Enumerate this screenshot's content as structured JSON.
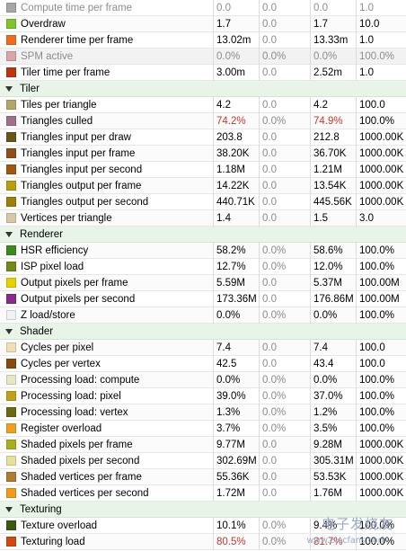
{
  "rows": [
    {
      "type": "data",
      "dim": true,
      "name": "Compute time per frame",
      "color": "#a6a6a6",
      "v": [
        "0.0",
        "0.0",
        "0.0",
        "1.0"
      ]
    },
    {
      "type": "data",
      "name": "Overdraw",
      "color": "#7fc32d",
      "v": [
        "1.7",
        "0.0",
        "1.7",
        "10.0"
      ]
    },
    {
      "type": "data",
      "name": "Renderer time per frame",
      "color": "#f36a1c",
      "v": [
        "13.02m",
        "0.0",
        "13.33m",
        "1.0"
      ]
    },
    {
      "type": "data",
      "dim": true,
      "name": "SPM active",
      "color": "#d7a7a7",
      "v": [
        "0.0%",
        "0.0%",
        "0.0%",
        "100.0%"
      ]
    },
    {
      "type": "data",
      "name": "Tiler time per frame",
      "color": "#c1330f",
      "v": [
        "3.00m",
        "0.0",
        "2.52m",
        "1.0"
      ]
    },
    {
      "type": "section",
      "name": "Tiler"
    },
    {
      "type": "data",
      "name": "Tiles per triangle",
      "color": "#b2a66a",
      "v": [
        "4.2",
        "0.0",
        "4.2",
        "100.0"
      ]
    },
    {
      "type": "data",
      "name": "Triangles culled",
      "color": "#a16f8a",
      "v": [
        "74.2%",
        "0.0%",
        "74.9%",
        "100.0%"
      ],
      "warn": [
        0,
        2
      ]
    },
    {
      "type": "data",
      "name": "Triangles input per draw",
      "color": "#6a5516",
      "v": [
        "203.8",
        "0.0",
        "212.8",
        "1000.00K"
      ]
    },
    {
      "type": "data",
      "name": "Triangles input per frame",
      "color": "#8f4f1a",
      "v": [
        "38.20K",
        "0.0",
        "36.70K",
        "1000.00K"
      ]
    },
    {
      "type": "data",
      "name": "Triangles input per second",
      "color": "#a3560f",
      "v": [
        "1.18M",
        "0.0",
        "1.21M",
        "1000.00K"
      ]
    },
    {
      "type": "data",
      "name": "Triangles output per frame",
      "color": "#b99d10",
      "v": [
        "14.22K",
        "0.0",
        "13.54K",
        "1000.00K"
      ]
    },
    {
      "type": "data",
      "name": "Triangles output per second",
      "color": "#a07e0a",
      "v": [
        "440.71K",
        "0.0",
        "445.56K",
        "1000.00K"
      ]
    },
    {
      "type": "data",
      "name": "Vertices per triangle",
      "color": "#d8c8a8",
      "v": [
        "1.4",
        "0.0",
        "1.5",
        "3.0"
      ]
    },
    {
      "type": "section",
      "name": "Renderer"
    },
    {
      "type": "data",
      "name": "HSR efficiency",
      "color": "#3c8a1e",
      "v": [
        "58.2%",
        "0.0%",
        "58.6%",
        "100.0%"
      ]
    },
    {
      "type": "data",
      "name": "ISP pixel load",
      "color": "#6f8a1a",
      "v": [
        "12.7%",
        "0.0%",
        "12.0%",
        "100.0%"
      ]
    },
    {
      "type": "data",
      "name": "Output pixels per frame",
      "color": "#e6d000",
      "v": [
        "5.59M",
        "0.0",
        "5.37M",
        "100.00M"
      ]
    },
    {
      "type": "data",
      "name": "Output pixels per second",
      "color": "#8a2a8a",
      "v": [
        "173.36M",
        "0.0",
        "176.86M",
        "100.00M"
      ]
    },
    {
      "type": "data",
      "name": "Z load/store",
      "color": "#f2f2f2",
      "v": [
        "0.0%",
        "0.0%",
        "0.0%",
        "100.0%"
      ]
    },
    {
      "type": "section",
      "name": "Shader"
    },
    {
      "type": "data",
      "name": "Cycles per pixel",
      "color": "#f1dfb5",
      "v": [
        "7.4",
        "0.0",
        "7.4",
        "100.0"
      ]
    },
    {
      "type": "data",
      "name": "Cycles per vertex",
      "color": "#8a4a10",
      "v": [
        "42.5",
        "0.0",
        "43.4",
        "100.0"
      ]
    },
    {
      "type": "data",
      "name": "Processing load: compute",
      "color": "#e7e7c4",
      "v": [
        "0.0%",
        "0.0%",
        "0.0%",
        "100.0%"
      ]
    },
    {
      "type": "data",
      "name": "Processing load: pixel",
      "color": "#c2a11a",
      "v": [
        "39.0%",
        "0.0%",
        "37.0%",
        "100.0%"
      ]
    },
    {
      "type": "data",
      "name": "Processing load: vertex",
      "color": "#6a6a12",
      "v": [
        "1.3%",
        "0.0%",
        "1.2%",
        "100.0%"
      ]
    },
    {
      "type": "data",
      "name": "Register overload",
      "color": "#f0a020",
      "v": [
        "3.7%",
        "0.0%",
        "3.5%",
        "100.0%"
      ]
    },
    {
      "type": "data",
      "name": "Shaded pixels per frame",
      "color": "#a8b020",
      "v": [
        "9.77M",
        "0.0",
        "9.28M",
        "1000.00K"
      ]
    },
    {
      "type": "data",
      "name": "Shaded pixels per second",
      "color": "#e5e09c",
      "v": [
        "302.69M",
        "0.0",
        "305.31M",
        "1000.00K"
      ]
    },
    {
      "type": "data",
      "name": "Shaded vertices per frame",
      "color": "#b07a30",
      "v": [
        "55.36K",
        "0.0",
        "53.53K",
        "1000.00K"
      ]
    },
    {
      "type": "data",
      "name": "Shaded vertices per second",
      "color": "#f39a1a",
      "v": [
        "1.72M",
        "0.0",
        "1.76M",
        "1000.00K"
      ]
    },
    {
      "type": "section",
      "name": "Texturing"
    },
    {
      "type": "data",
      "name": "Texture overload",
      "color": "#3a5a10",
      "v": [
        "10.1%",
        "0.0%",
        "9.4%",
        "100.0%"
      ]
    },
    {
      "type": "data",
      "name": "Texturing load",
      "color": "#d24a12",
      "v": [
        "80.5%",
        "0.0%",
        "81.7%",
        "100.0%"
      ],
      "warn": [
        0,
        2
      ]
    }
  ],
  "watermark": {
    "text": "电子发烧友",
    "url": "www.elecfans.com"
  }
}
